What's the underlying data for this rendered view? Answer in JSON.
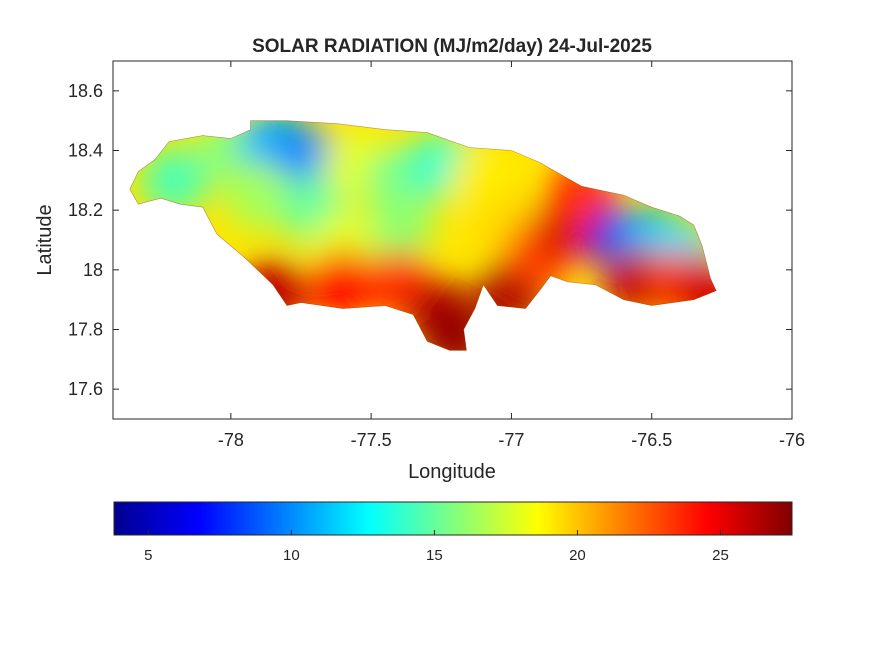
{
  "figure": {
    "title": "SOLAR RADIATION (MJ/m2/day) 24-Jul-2025"
  },
  "chart_data": {
    "type": "heatmap",
    "title": "SOLAR RADIATION (MJ/m2/day) 24-Jul-2025",
    "xlabel": "Longitude",
    "ylabel": "Latitude",
    "xlim": [
      -78.42,
      -76.0
    ],
    "ylim": [
      17.5,
      18.7
    ],
    "xticks": [
      -78,
      -77.5,
      -77,
      -76.5,
      -76
    ],
    "xtick_labels": [
      "-78",
      "-77.5",
      "-77",
      "-76.5",
      "-76"
    ],
    "yticks": [
      17.6,
      17.8,
      18.0,
      18.2,
      18.4,
      18.6
    ],
    "ytick_labels": [
      "17.6",
      "17.8",
      "18",
      "18.2",
      "18.4",
      "18.6"
    ],
    "grid": false,
    "colormap": "jet",
    "colorbar": {
      "location": "bottom",
      "range": [
        3.8,
        27.5
      ],
      "ticks": [
        5,
        10,
        15,
        20,
        25
      ],
      "tick_labels": [
        "5",
        "10",
        "15",
        "20",
        "25"
      ]
    },
    "region_outline": [
      [
        -78.36,
        18.27
      ],
      [
        -78.33,
        18.33
      ],
      [
        -78.27,
        18.37
      ],
      [
        -78.22,
        18.43
      ],
      [
        -78.1,
        18.45
      ],
      [
        -78.0,
        18.44
      ],
      [
        -77.93,
        18.47
      ],
      [
        -77.93,
        18.5
      ],
      [
        -77.8,
        18.5
      ],
      [
        -77.62,
        18.49
      ],
      [
        -77.45,
        18.47
      ],
      [
        -77.3,
        18.46
      ],
      [
        -77.15,
        18.41
      ],
      [
        -77.0,
        18.4
      ],
      [
        -76.9,
        18.36
      ],
      [
        -76.75,
        18.28
      ],
      [
        -76.6,
        18.25
      ],
      [
        -76.5,
        18.21
      ],
      [
        -76.4,
        18.18
      ],
      [
        -76.35,
        18.15
      ],
      [
        -76.32,
        18.08
      ],
      [
        -76.29,
        17.97
      ],
      [
        -76.27,
        17.93
      ],
      [
        -76.35,
        17.9
      ],
      [
        -76.5,
        17.88
      ],
      [
        -76.6,
        17.9
      ],
      [
        -76.7,
        17.95
      ],
      [
        -76.8,
        17.96
      ],
      [
        -76.86,
        17.98
      ],
      [
        -76.9,
        17.93
      ],
      [
        -76.95,
        17.87
      ],
      [
        -77.05,
        17.88
      ],
      [
        -77.1,
        17.95
      ],
      [
        -77.13,
        17.87
      ],
      [
        -77.17,
        17.8
      ],
      [
        -77.16,
        17.73
      ],
      [
        -77.22,
        17.73
      ],
      [
        -77.3,
        17.76
      ],
      [
        -77.35,
        17.85
      ],
      [
        -77.45,
        17.88
      ],
      [
        -77.6,
        17.87
      ],
      [
        -77.75,
        17.89
      ],
      [
        -77.8,
        17.88
      ],
      [
        -77.85,
        17.95
      ],
      [
        -77.95,
        18.04
      ],
      [
        -78.05,
        18.12
      ],
      [
        -78.1,
        18.21
      ],
      [
        -78.18,
        18.22
      ],
      [
        -78.25,
        18.24
      ],
      [
        -78.33,
        18.22
      ]
    ],
    "value_field": [
      {
        "lon": -78.2,
        "lat": 18.3,
        "value": 14.5
      },
      {
        "lon": -78.0,
        "lat": 18.4,
        "value": 16.0
      },
      {
        "lon": -77.85,
        "lat": 18.42,
        "value": 11.0
      },
      {
        "lon": -77.75,
        "lat": 18.38,
        "value": 10.0
      },
      {
        "lon": -77.9,
        "lat": 18.25,
        "value": 16.5
      },
      {
        "lon": -77.7,
        "lat": 18.2,
        "value": 15.0
      },
      {
        "lon": -77.55,
        "lat": 18.35,
        "value": 18.0
      },
      {
        "lon": -77.4,
        "lat": 18.3,
        "value": 15.5
      },
      {
        "lon": -77.25,
        "lat": 18.35,
        "value": 14.0
      },
      {
        "lon": -77.1,
        "lat": 18.3,
        "value": 19.0
      },
      {
        "lon": -77.0,
        "lat": 18.15,
        "value": 19.5
      },
      {
        "lon": -77.4,
        "lat": 18.15,
        "value": 16.0
      },
      {
        "lon": -77.6,
        "lat": 18.08,
        "value": 18.0
      },
      {
        "lon": -77.6,
        "lat": 17.95,
        "value": 24.5
      },
      {
        "lon": -77.85,
        "lat": 17.92,
        "value": 26.0
      },
      {
        "lon": -77.4,
        "lat": 17.95,
        "value": 23.5
      },
      {
        "lon": -77.25,
        "lat": 17.85,
        "value": 26.5
      },
      {
        "lon": -77.2,
        "lat": 17.77,
        "value": 27.0
      },
      {
        "lon": -77.0,
        "lat": 17.92,
        "value": 26.5
      },
      {
        "lon": -76.9,
        "lat": 18.05,
        "value": 23.0
      },
      {
        "lon": -76.8,
        "lat": 18.15,
        "value": 25.5
      },
      {
        "lon": -76.75,
        "lat": 18.25,
        "value": 23.5
      },
      {
        "lon": -76.6,
        "lat": 18.1,
        "value": 6.5
      },
      {
        "lon": -76.5,
        "lat": 18.09,
        "value": 11.0
      },
      {
        "lon": -76.4,
        "lat": 18.05,
        "value": 12.0
      },
      {
        "lon": -76.55,
        "lat": 17.96,
        "value": 26.0
      },
      {
        "lon": -76.4,
        "lat": 17.95,
        "value": 23.0
      },
      {
        "lon": -76.3,
        "lat": 17.93,
        "value": 25.5
      }
    ]
  }
}
